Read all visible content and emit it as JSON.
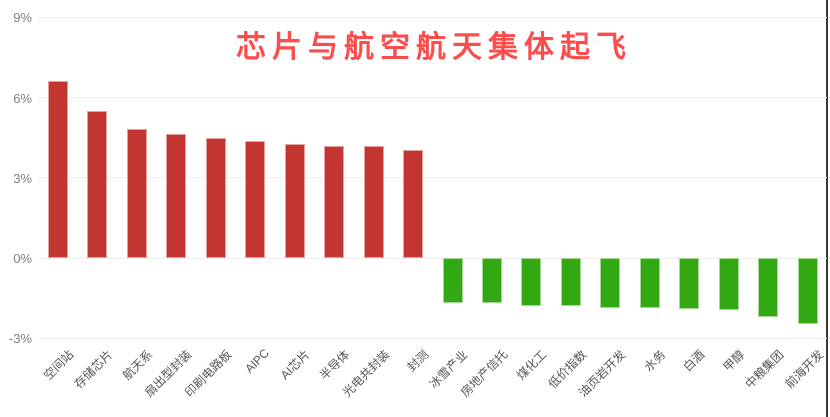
{
  "title": {
    "text": "芯片与航空航天集体起飞",
    "color": "#fc4d4d"
  },
  "chart_data": {
    "type": "bar",
    "title": "芯片与航空航天集体起飞",
    "categories": [
      "空间站",
      "存储芯片",
      "航天系",
      "扇出型封装",
      "印刷电路板",
      "AIPC",
      "AI芯片",
      "半导体",
      "光电共封装",
      "封测",
      "冰雪产业",
      "房地产信托",
      "煤化工",
      "低价指数",
      "油页岩开发",
      "水务",
      "白酒",
      "甲醇",
      "中粮集团",
      "前海开发"
    ],
    "values": [
      6.62,
      5.51,
      4.82,
      4.64,
      4.5,
      4.37,
      4.25,
      4.19,
      4.19,
      4.04,
      -1.68,
      -1.68,
      -1.78,
      -1.78,
      -1.86,
      -1.86,
      -1.91,
      -1.94,
      -2.19,
      -2.48
    ],
    "xlabel": "",
    "ylabel": "",
    "y_ticks": [
      "9%",
      "6%",
      "3%",
      "0%",
      "-3%"
    ],
    "y_tick_values": [
      9,
      6,
      3,
      0,
      -3
    ],
    "ylim": [
      -3.9,
      9
    ],
    "grid": true,
    "legend": false,
    "colors": {
      "positive": "#c23531",
      "positive_border": "#e5a19b",
      "negative": "#32a812",
      "negative_border": "#a6d795",
      "gridline": "#eeeeee",
      "axis_label": "#7f7f7f",
      "category_label": "#555555",
      "frame_line": "#3a3a3a"
    }
  }
}
